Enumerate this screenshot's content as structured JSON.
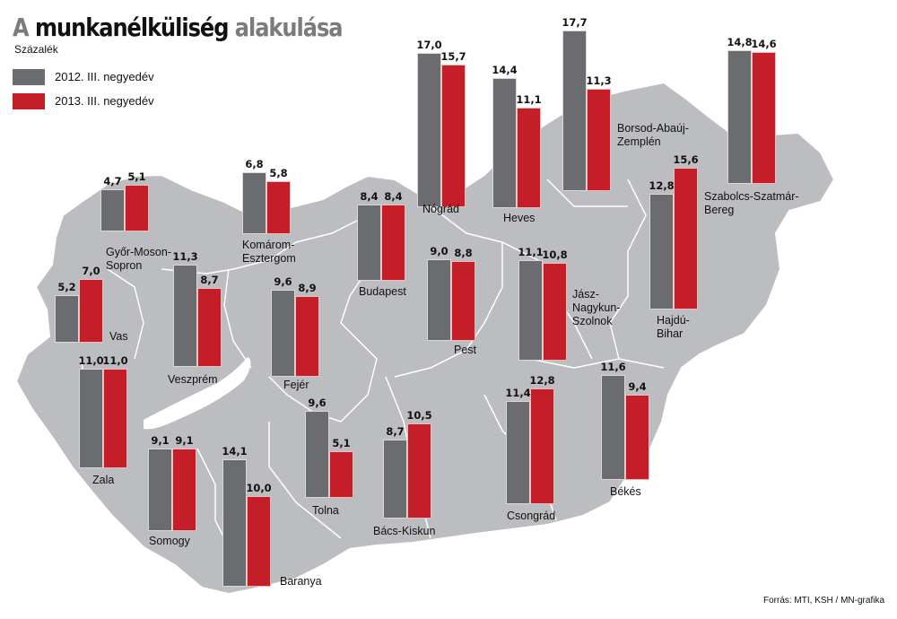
{
  "header": {
    "title_part1": "A ",
    "title_part2": "munkanélküliség",
    "title_part3": " alakulása",
    "subtitle": "Százalék"
  },
  "legend": [
    {
      "label": "2012. III. negyedév",
      "color": "#6b6c6f"
    },
    {
      "label": "2013. III. negyedév",
      "color": "#c41e28"
    }
  ],
  "source": "Forrás: MTI, KSH / MN-grafika",
  "colors": {
    "map_fill": "#bcbdc0",
    "border": "#ffffff",
    "bar_2012": "#6b6c6f",
    "bar_2013": "#c41e28"
  },
  "chart_data": {
    "type": "bar",
    "title": "A munkanélküliség alakulása",
    "subtitle": "Százalék",
    "xlabel": "",
    "ylabel": "Százalék",
    "legend_position": "top-left",
    "grid": false,
    "categories": [
      "Győr-Moson-Sopron",
      "Komárom-Esztergom",
      "Nógrád",
      "Heves",
      "Borsod-Abaúj-Zemplén",
      "Szabolcs-Szatmár-Bereg",
      "Vas",
      "Veszprém",
      "Fejér",
      "Budapest",
      "Pest",
      "Jász-Nagykun-Szolnok",
      "Hajdú-Bihar",
      "Zala",
      "Somogy",
      "Baranya",
      "Tolna",
      "Bács-Kiskun",
      "Csongrád",
      "Békés"
    ],
    "series": [
      {
        "name": "2012. III. negyedév",
        "values": [
          4.7,
          6.8,
          17.0,
          14.4,
          17.7,
          14.8,
          5.2,
          11.3,
          9.6,
          8.4,
          9.0,
          11.1,
          12.8,
          11.0,
          9.1,
          14.1,
          9.6,
          8.7,
          11.4,
          11.6
        ]
      },
      {
        "name": "2013. III. negyedév",
        "values": [
          5.1,
          5.8,
          15.7,
          11.1,
          11.3,
          14.6,
          7.0,
          8.7,
          8.9,
          8.4,
          8.8,
          10.8,
          15.6,
          11.0,
          9.1,
          10.0,
          5.1,
          10.5,
          12.8,
          9.4
        ]
      }
    ]
  },
  "counties": [
    {
      "name": "Győr-Moson-Sopron",
      "label_lines": [
        "Győr-Moson-",
        "Sopron"
      ],
      "v2012": "4,7",
      "v2013": "5,1",
      "h2012": 4.7,
      "h2013": 5.1
    },
    {
      "name": "Komárom-Esztergom",
      "label_lines": [
        "Komárom-",
        "Esztergom"
      ],
      "v2012": "6,8",
      "v2013": "5,8",
      "h2012": 6.8,
      "h2013": 5.8
    },
    {
      "name": "Nógrád",
      "label_lines": [
        "Nógrád"
      ],
      "v2012": "17,0",
      "v2013": "15,7",
      "h2012": 17.0,
      "h2013": 15.7
    },
    {
      "name": "Heves",
      "label_lines": [
        "Heves"
      ],
      "v2012": "14,4",
      "v2013": "11,1",
      "h2012": 14.4,
      "h2013": 11.1
    },
    {
      "name": "Borsod-Abaúj-Zemplén",
      "label_lines": [
        "Borsod-Abaúj-",
        "Zemplén"
      ],
      "v2012": "17,7",
      "v2013": "11,3",
      "h2012": 17.7,
      "h2013": 11.3
    },
    {
      "name": "Szabolcs-Szatmár-Bereg",
      "label_lines": [
        "Szabolcs-Szatmár-",
        "Bereg"
      ],
      "v2012": "14,8",
      "v2013": "14,6",
      "h2012": 14.8,
      "h2013": 14.6
    },
    {
      "name": "Vas",
      "label_lines": [
        "Vas"
      ],
      "v2012": "5,2",
      "v2013": "7,0",
      "h2012": 5.2,
      "h2013": 7.0
    },
    {
      "name": "Veszprém",
      "label_lines": [
        "Veszprém"
      ],
      "v2012": "11,3",
      "v2013": "8,7",
      "h2012": 11.3,
      "h2013": 8.7
    },
    {
      "name": "Fejér",
      "label_lines": [
        "Fejér"
      ],
      "v2012": "9,6",
      "v2013": "8,9",
      "h2012": 9.6,
      "h2013": 8.9
    },
    {
      "name": "Budapest",
      "label_lines": [
        "Budapest"
      ],
      "v2012": "8,4",
      "v2013": "8,4",
      "h2012": 8.4,
      "h2013": 8.4
    },
    {
      "name": "Pest",
      "label_lines": [
        "Pest"
      ],
      "v2012": "9,0",
      "v2013": "8,8",
      "h2012": 9.0,
      "h2013": 8.8
    },
    {
      "name": "Jász-Nagykun-Szolnok",
      "label_lines": [
        "Jász-",
        "Nagykun-",
        "Szolnok"
      ],
      "v2012": "11,1",
      "v2013": "10,8",
      "h2012": 11.1,
      "h2013": 10.8
    },
    {
      "name": "Hajdú-Bihar",
      "label_lines": [
        "Hajdú-",
        "Bihar"
      ],
      "v2012": "12,8",
      "v2013": "15,6",
      "h2012": 12.8,
      "h2013": 15.6
    },
    {
      "name": "Zala",
      "label_lines": [
        "Zala"
      ],
      "v2012": "11,0",
      "v2013": "11,0",
      "h2012": 11.0,
      "h2013": 11.0
    },
    {
      "name": "Somogy",
      "label_lines": [
        "Somogy"
      ],
      "v2012": "9,1",
      "v2013": "9,1",
      "h2012": 9.1,
      "h2013": 9.1
    },
    {
      "name": "Baranya",
      "label_lines": [
        "Baranya"
      ],
      "v2012": "14,1",
      "v2013": "10,0",
      "h2012": 14.1,
      "h2013": 10.0
    },
    {
      "name": "Tolna",
      "label_lines": [
        "Tolna"
      ],
      "v2012": "9,6",
      "v2013": "5,1",
      "h2012": 9.6,
      "h2013": 5.1
    },
    {
      "name": "Bács-Kiskun",
      "label_lines": [
        "Bács-Kiskun"
      ],
      "v2012": "8,7",
      "v2013": "10,5",
      "h2012": 8.7,
      "h2013": 10.5
    },
    {
      "name": "Csongrád",
      "label_lines": [
        "Csongrád"
      ],
      "v2012": "11,4",
      "v2013": "12,8",
      "h2012": 11.4,
      "h2013": 12.8
    },
    {
      "name": "Békés",
      "label_lines": [
        "Békés"
      ],
      "v2012": "11,6",
      "v2013": "9,4",
      "h2012": 11.6,
      "h2013": 9.4
    }
  ]
}
